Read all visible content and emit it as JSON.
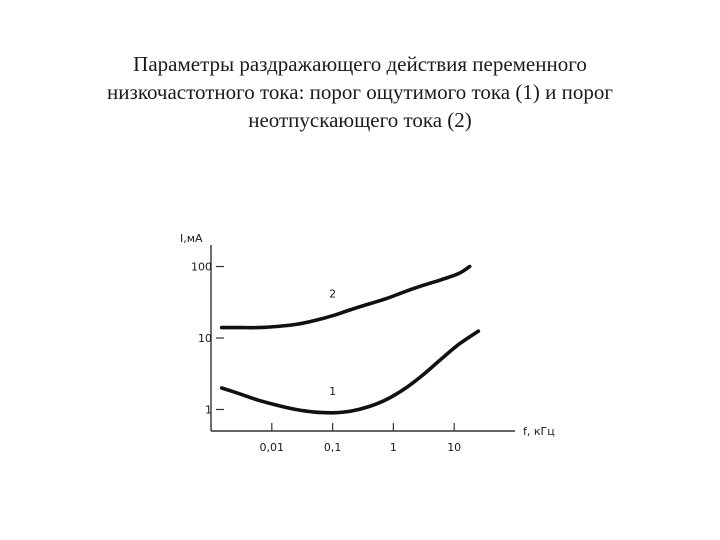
{
  "title": {
    "line1": "Параметры раздражающего действия переменного",
    "line2": "низкочастотного тока: порог ощутимого тока (1) и порог",
    "line3": "неотпускающего тока (2)"
  },
  "chart_data": {
    "type": "line",
    "xlabel": "f, кГц",
    "ylabel": "I,мА",
    "x_scale": "log",
    "y_scale": "log",
    "xlim": [
      0.001,
      100
    ],
    "ylim": [
      0.5,
      200
    ],
    "x_ticks": [
      {
        "value": 0.01,
        "label": "0,01"
      },
      {
        "value": 0.1,
        "label": "0,1"
      },
      {
        "value": 1,
        "label": "1"
      },
      {
        "value": 10,
        "label": "10"
      }
    ],
    "y_ticks": [
      {
        "value": 1,
        "label": "1"
      },
      {
        "value": 10,
        "label": "10"
      },
      {
        "value": 100,
        "label": "100"
      }
    ],
    "grid": false,
    "legend": "none",
    "series": [
      {
        "name": "1",
        "x": [
          0.0015,
          0.003,
          0.006,
          0.012,
          0.025,
          0.05,
          0.1,
          0.2,
          0.4,
          0.8,
          1.6,
          3,
          6,
          12,
          25
        ],
        "y": [
          2.0,
          1.65,
          1.35,
          1.15,
          1.0,
          0.92,
          0.9,
          0.95,
          1.1,
          1.4,
          2.0,
          3.0,
          5.0,
          8.2,
          12.5
        ]
      },
      {
        "name": "2",
        "x": [
          0.0015,
          0.003,
          0.006,
          0.012,
          0.025,
          0.05,
          0.1,
          0.2,
          0.4,
          0.8,
          1.6,
          3,
          6,
          12,
          18
        ],
        "y": [
          14,
          14,
          14,
          14.5,
          15.5,
          17.5,
          20.5,
          25,
          30,
          36,
          45,
          54,
          65,
          80,
          100
        ]
      }
    ],
    "colors": {
      "line": "#111111",
      "axis": "#333333"
    }
  }
}
